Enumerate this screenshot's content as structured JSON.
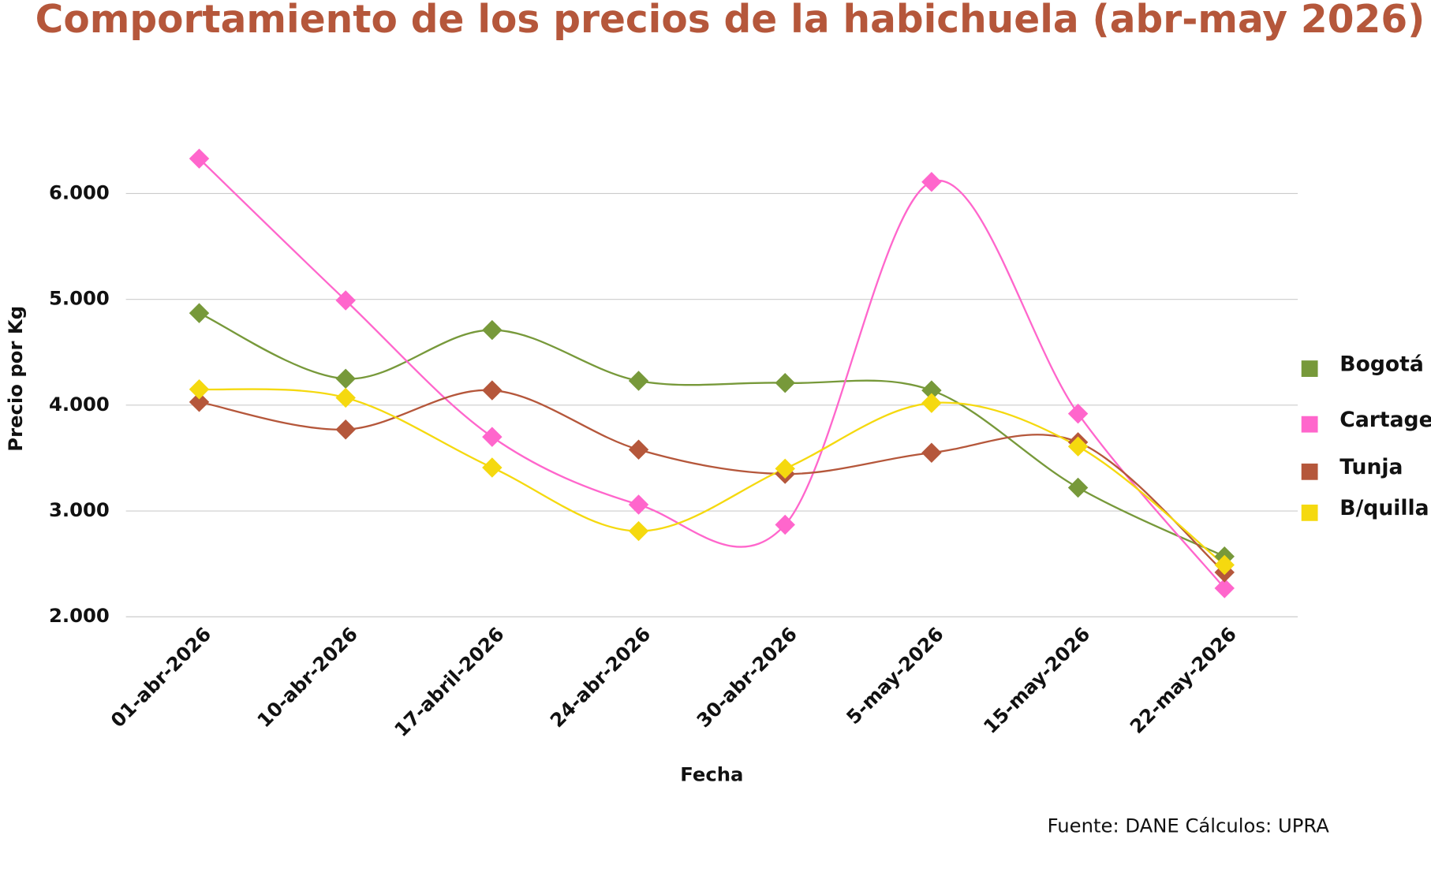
{
  "chart_data": {
    "type": "line",
    "title": "Comportamiento de los precios de la habichuela (abr-may 2026)",
    "x_label": "Fecha",
    "y_label": "Precio por Kg",
    "source": "Fuente: DANE Cálculos: UPRA",
    "categories": [
      "01-abr-2026",
      "10-abr-2026",
      "17-abril-2026",
      "24-abr-2026",
      "30-abr-2026",
      "5-may-2026",
      "15-may-2026",
      "22-may-2026"
    ],
    "series": [
      {
        "name": "Bogotá",
        "color": "#77993a",
        "values": [
          4870,
          4250,
          4710,
          4230,
          4210,
          4140,
          3220,
          2570
        ]
      },
      {
        "name": "Cartage",
        "color": "#ff66cc",
        "values": [
          6330,
          4990,
          3700,
          3060,
          2870,
          6110,
          3920,
          2270
        ]
      },
      {
        "name": "Tunja",
        "color": "#b5573b",
        "values": [
          4030,
          3770,
          4140,
          3580,
          3350,
          3550,
          3650,
          2420
        ]
      },
      {
        "name": "B/quilla",
        "color": "#f5d90f",
        "values": [
          4150,
          4070,
          3410,
          2810,
          3400,
          4020,
          3610,
          2490
        ]
      }
    ],
    "ylim": [
      2000,
      6400
    ],
    "yticks": [
      {
        "value": 2000,
        "label": "2.000"
      },
      {
        "value": 3000,
        "label": "3.000"
      },
      {
        "value": 4000,
        "label": "4.000"
      },
      {
        "value": 5000,
        "label": "5.000"
      },
      {
        "value": 6000,
        "label": "6.000"
      }
    ],
    "grid": true,
    "smooth": true,
    "legend": "right"
  }
}
